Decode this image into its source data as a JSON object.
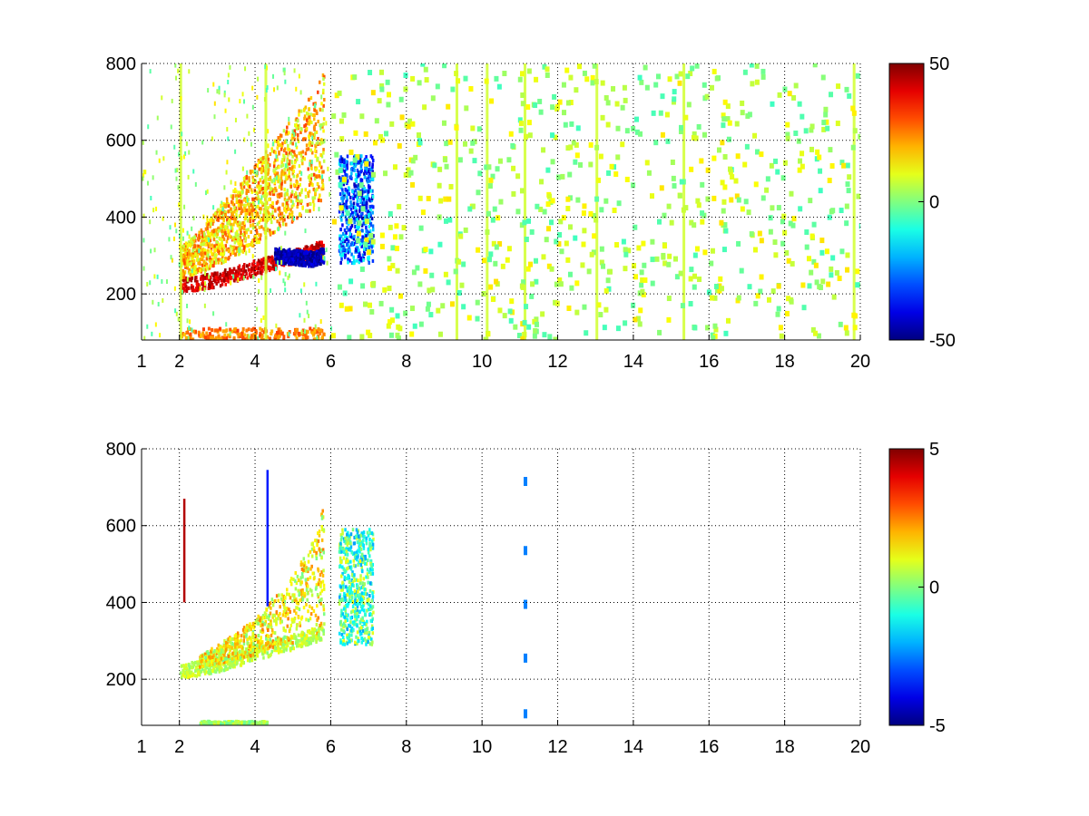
{
  "chart_data": [
    {
      "type": "heatmap",
      "title": "",
      "xlabel": "",
      "ylabel": "",
      "xlim": [
        1,
        20
      ],
      "ylim": [
        80,
        800
      ],
      "grid": true,
      "x_ticks": [
        1,
        2,
        4,
        6,
        8,
        10,
        12,
        14,
        16,
        18,
        20
      ],
      "y_ticks": [
        200,
        400,
        600,
        800
      ],
      "colorbar": {
        "min": -50,
        "max": 50,
        "ticks": [
          50,
          0,
          -50
        ],
        "colormap": "jet"
      },
      "features": [
        {
          "kind": "ridge",
          "x": [
            2.0,
            2.5,
            3.0,
            3.5,
            4.0,
            4.5,
            5.0,
            5.5,
            5.8
          ],
          "y": [
            220,
            228,
            238,
            252,
            268,
            282,
            295,
            310,
            325
          ],
          "value": 42
        },
        {
          "kind": "ridge",
          "x": [
            4.5,
            5.0,
            5.5,
            5.8
          ],
          "y": [
            300,
            295,
            290,
            300
          ],
          "value": -45
        },
        {
          "kind": "band",
          "x": [
            2.0,
            2.5,
            3.0,
            3.5,
            4.0,
            4.5,
            5.0,
            5.5,
            5.8
          ],
          "y_low": [
            240,
            255,
            275,
            300,
            330,
            360,
            390,
            420,
            450
          ],
          "y_high": [
            320,
            360,
            420,
            480,
            540,
            600,
            660,
            720,
            780
          ],
          "value": 18
        },
        {
          "kind": "blob",
          "x_range": [
            6.2,
            7.1
          ],
          "y_range": [
            280,
            560
          ],
          "value": -28
        },
        {
          "kind": "floor",
          "x_range": [
            2.0,
            5.8
          ],
          "y_range": [
            80,
            110
          ],
          "value": 25
        },
        {
          "kind": "stripes",
          "x": [
            2.0,
            4.25,
            9.3,
            10.1,
            11.1,
            13.0,
            15.3,
            19.8
          ],
          "value": 8
        }
      ]
    },
    {
      "type": "heatmap",
      "title": "",
      "xlabel": "",
      "ylabel": "",
      "xlim": [
        1,
        20
      ],
      "ylim": [
        80,
        800
      ],
      "grid": true,
      "x_ticks": [
        1,
        2,
        4,
        6,
        8,
        10,
        12,
        14,
        16,
        18,
        20
      ],
      "y_ticks": [
        200,
        400,
        600,
        800
      ],
      "colorbar": {
        "min": -5,
        "max": 5,
        "ticks": [
          5,
          0,
          -5
        ],
        "colormap": "jet"
      },
      "features": [
        {
          "kind": "ridge",
          "x": [
            2.0,
            2.5,
            3.0,
            3.5,
            4.0,
            4.5,
            5.0,
            5.5,
            5.8
          ],
          "y": [
            220,
            228,
            238,
            252,
            268,
            282,
            295,
            310,
            325
          ],
          "value": 0.6
        },
        {
          "kind": "band",
          "x": [
            2.5,
            3.0,
            3.5,
            4.0,
            4.5,
            5.0,
            5.5,
            5.8
          ],
          "y_low": [
            230,
            240,
            250,
            265,
            280,
            295,
            310,
            320
          ],
          "y_high": [
            260,
            290,
            320,
            360,
            420,
            470,
            560,
            650
          ],
          "value": 1.2
        },
        {
          "kind": "blob",
          "x_range": [
            6.2,
            7.1
          ],
          "y_range": [
            290,
            590
          ],
          "value": -0.5
        },
        {
          "kind": "floor",
          "x_range": [
            2.5,
            4.3
          ],
          "y_range": [
            80,
            90
          ],
          "value": 0.3
        },
        {
          "kind": "spike",
          "x": 2.1,
          "y_range": [
            400,
            670
          ],
          "value": 4.5
        },
        {
          "kind": "spike",
          "x": 4.3,
          "y_range": [
            390,
            745
          ],
          "value": -3.5
        },
        {
          "kind": "points",
          "x": [
            11.1,
            11.1,
            11.1,
            11.1,
            11.1
          ],
          "y": [
            715,
            535,
            395,
            255,
            110
          ],
          "value": -2.5
        }
      ]
    }
  ]
}
